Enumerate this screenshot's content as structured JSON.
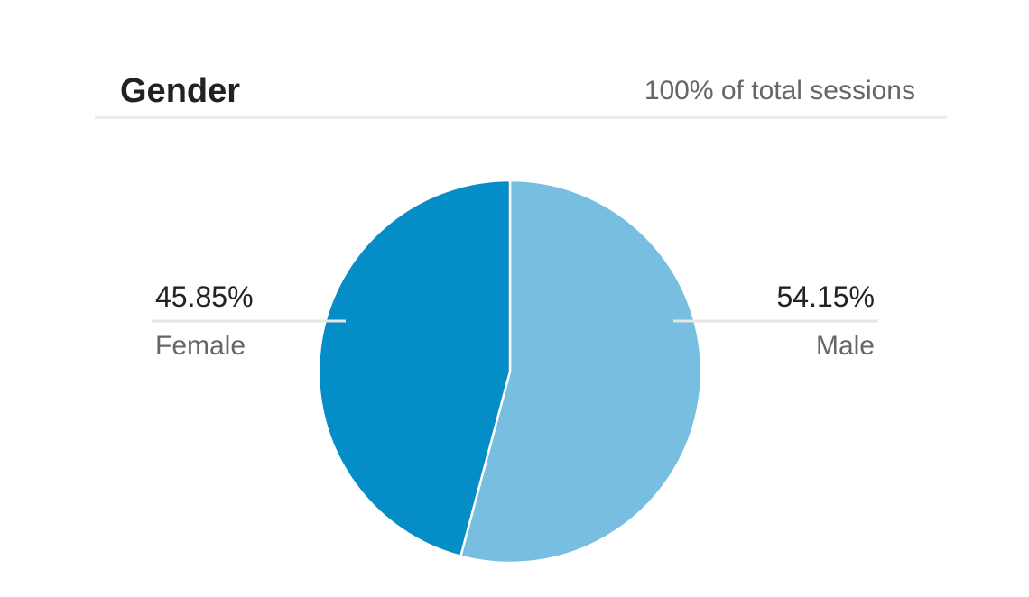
{
  "header": {
    "title": "Gender",
    "subtitle": "100% of total sessions"
  },
  "chart_data": {
    "type": "pie",
    "title": "Gender",
    "subtitle": "100% of total sessions",
    "categories": [
      "Female",
      "Male"
    ],
    "values": [
      45.85,
      54.15
    ],
    "value_labels": [
      "45.85%",
      "54.15%"
    ],
    "colors": [
      "#058dc7",
      "#77bee0"
    ],
    "legend": "none"
  }
}
